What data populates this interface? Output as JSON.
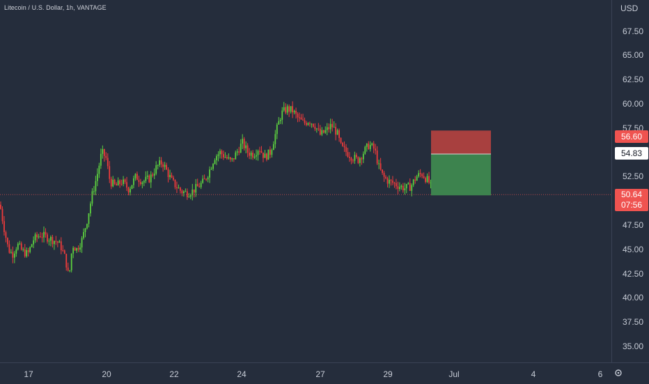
{
  "header": {
    "symbol_line": "Litecoin / U.S. Dollar, 1h, VANTAGE"
  },
  "axis": {
    "currency": "USD",
    "y_ticks": [
      "67.50",
      "65.00",
      "62.50",
      "60.00",
      "57.50",
      "52.50",
      "47.50",
      "45.00",
      "42.50",
      "40.00",
      "37.50",
      "35.00"
    ],
    "x_ticks": [
      "17",
      "20",
      "22",
      "24",
      "27",
      "29",
      "Jul",
      "4",
      "6"
    ]
  },
  "price_labels": {
    "stop": "56.60",
    "entry": "54.83",
    "last": "50.64",
    "countdown": "07:56"
  },
  "colors": {
    "background": "#252d3c",
    "up": "#26a69a",
    "down": "#ef5350",
    "bull": "#5cd03f",
    "bear": "#ef3b3b",
    "stop_zone": "#a8403f",
    "target_zone": "#3d834e"
  },
  "chart_data": {
    "type": "candlestick",
    "title": "Litecoin / U.S. Dollar, 1h, VANTAGE",
    "y_unit": "USD",
    "ylim": [
      33.5,
      70.0
    ],
    "x_dates": [
      "17",
      "20",
      "22",
      "24",
      "27",
      "29",
      "Jul",
      "4",
      "6"
    ],
    "path": [
      [
        0,
        49.6
      ],
      [
        5,
        47.5
      ],
      [
        12,
        45.0
      ],
      [
        18,
        44.5
      ],
      [
        25,
        45.5
      ],
      [
        32,
        44.8
      ],
      [
        40,
        44.5
      ],
      [
        48,
        46.0
      ],
      [
        58,
        46.5
      ],
      [
        66,
        46.3
      ],
      [
        75,
        46.0
      ],
      [
        82,
        45.8
      ],
      [
        88,
        45.2
      ],
      [
        94,
        44.0
      ],
      [
        99,
        42.0
      ],
      [
        104,
        45.5
      ],
      [
        110,
        45.0
      ],
      [
        118,
        46.0
      ],
      [
        125,
        48.0
      ],
      [
        132,
        50.5
      ],
      [
        139,
        52.5
      ],
      [
        146,
        55.0
      ],
      [
        152,
        54.5
      ],
      [
        158,
        52.0
      ],
      [
        166,
        51.5
      ],
      [
        175,
        52.0
      ],
      [
        185,
        51.2
      ],
      [
        195,
        52.5
      ],
      [
        205,
        52.0
      ],
      [
        215,
        52.3
      ],
      [
        225,
        53.5
      ],
      [
        233,
        54.0
      ],
      [
        240,
        53.0
      ],
      [
        247,
        52.0
      ],
      [
        253,
        51.5
      ],
      [
        260,
        51.0
      ],
      [
        268,
        50.8
      ],
      [
        276,
        51.0
      ],
      [
        285,
        51.5
      ],
      [
        293,
        52.0
      ],
      [
        300,
        53.0
      ],
      [
        308,
        54.5
      ],
      [
        316,
        55.0
      ],
      [
        324,
        54.5
      ],
      [
        332,
        54.0
      ],
      [
        340,
        55.0
      ],
      [
        348,
        56.0
      ],
      [
        356,
        55.0
      ],
      [
        364,
        54.8
      ],
      [
        372,
        55.5
      ],
      [
        380,
        54.5
      ],
      [
        388,
        55.0
      ],
      [
        396,
        57.0
      ],
      [
        404,
        59.0
      ],
      [
        412,
        59.5
      ],
      [
        420,
        59.3
      ],
      [
        428,
        58.5
      ],
      [
        436,
        58.0
      ],
      [
        444,
        58.3
      ],
      [
        452,
        57.8
      ],
      [
        460,
        56.8
      ],
      [
        468,
        57.2
      ],
      [
        476,
        57.8
      ],
      [
        484,
        57.0
      ],
      [
        490,
        55.5
      ],
      [
        498,
        55.0
      ],
      [
        506,
        54.5
      ],
      [
        514,
        54.2
      ],
      [
        522,
        55.0
      ],
      [
        530,
        55.8
      ],
      [
        538,
        55.3
      ],
      [
        544,
        53.5
      ],
      [
        550,
        52.5
      ],
      [
        558,
        52.0
      ],
      [
        566,
        51.8
      ],
      [
        574,
        51.5
      ],
      [
        582,
        51.3
      ],
      [
        590,
        51.5
      ],
      [
        598,
        52.5
      ],
      [
        606,
        52.8
      ],
      [
        612,
        52.3
      ],
      [
        617,
        51.8
      ],
      [
        621,
        50.9
      ]
    ],
    "position": {
      "stop_loss": 56.6,
      "entry": 54.83,
      "take_profit": 50.64,
      "last_price": 50.64
    }
  }
}
